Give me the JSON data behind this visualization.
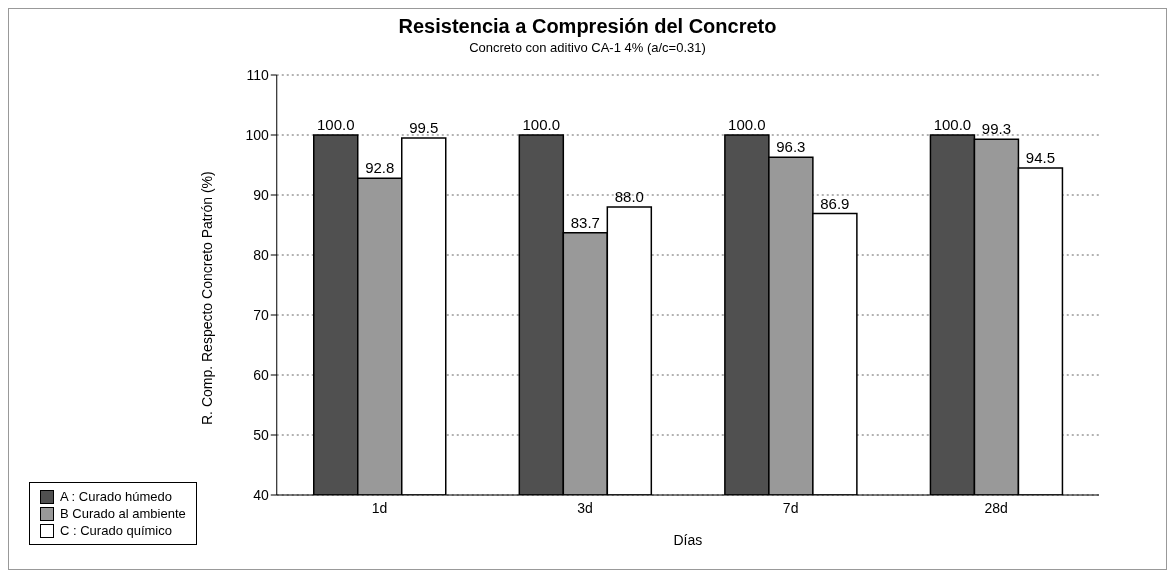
{
  "chart_data": {
    "type": "bar",
    "title": "Resistencia a Compresión del Concreto",
    "subtitle": "Concreto con aditivo CA-1 4% (a/c=0.31)",
    "xlabel": "Días",
    "ylabel": "R. Comp. Respecto Concreto Patrón (%)",
    "categories": [
      "1d",
      "3d",
      "7d",
      "28d"
    ],
    "series": [
      {
        "name": "A : Curado húmedo",
        "color": "#505050",
        "values": [
          100.0,
          100.0,
          100.0,
          100.0
        ],
        "value_labels": [
          "100.0",
          "100.0",
          "100.0",
          "100.0"
        ]
      },
      {
        "name": "B Curado al ambiente",
        "color": "#999999",
        "values": [
          92.8,
          83.7,
          96.3,
          99.3
        ],
        "value_labels": [
          "92.8",
          "83.7",
          "96.3",
          "99.3"
        ]
      },
      {
        "name": "C : Curado químico",
        "color": "#ffffff",
        "values": [
          99.5,
          88.0,
          86.9,
          94.5
        ],
        "value_labels": [
          "99.5",
          "88.0",
          "86.9",
          "94.5"
        ]
      }
    ],
    "ylim": [
      40,
      110
    ],
    "yticks": [
      40,
      50,
      60,
      70,
      80,
      90,
      100,
      110
    ],
    "grid": "y",
    "legend": "bottom left"
  }
}
